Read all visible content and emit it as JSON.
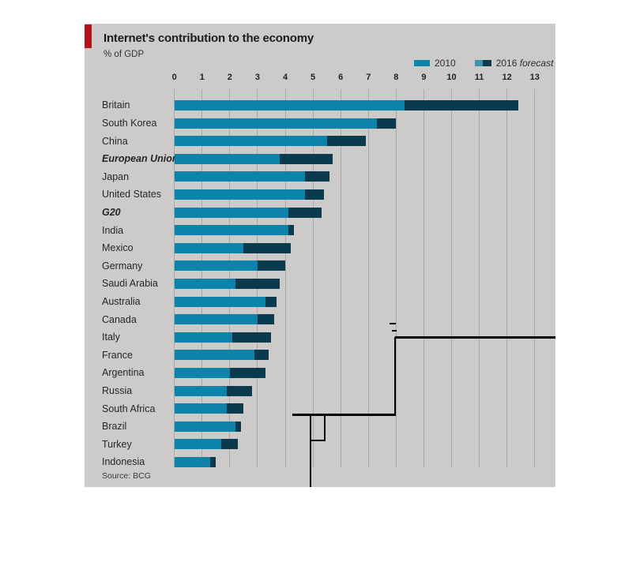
{
  "title": "Internet's contribution to the economy",
  "subtitle": "% of GDP",
  "source": "Source: BCG",
  "legend": {
    "y2010_label": "2010",
    "y2016_label": "2016",
    "y2016_italic": "forecast"
  },
  "chart_data": {
    "type": "bar",
    "orientation": "horizontal-stacked",
    "title": "Internet's contribution to the economy",
    "xlabel": "% of GDP",
    "xlim": [
      0,
      13
    ],
    "x_ticks": [
      0,
      1,
      2,
      3,
      4,
      5,
      6,
      7,
      8,
      9,
      10,
      11,
      12,
      13
    ],
    "grid": "vertical",
    "legend_position": "top-right",
    "categories": [
      "Britain",
      "South Korea",
      "China",
      "European Union",
      "Japan",
      "United States",
      "G20",
      "India",
      "Mexico",
      "Germany",
      "Saudi Arabia",
      "Australia",
      "Canada",
      "Italy",
      "France",
      "Argentina",
      "Russia",
      "South Africa",
      "Brazil",
      "Turkey",
      "Indonesia"
    ],
    "italic_categories": [
      "European Union",
      "G20"
    ],
    "series": [
      {
        "name": "2010",
        "color": "#0d82aa",
        "values": [
          8.3,
          7.3,
          5.5,
          3.8,
          4.7,
          4.7,
          4.1,
          4.1,
          2.5,
          3.0,
          2.2,
          3.3,
          3.0,
          2.1,
          2.9,
          2.0,
          1.9,
          1.9,
          2.2,
          1.7,
          1.3
        ]
      },
      {
        "name": "2016 forecast",
        "color": "#0a3a4d",
        "values": [
          12.4,
          8.0,
          6.9,
          5.7,
          5.6,
          5.4,
          5.3,
          4.3,
          4.2,
          4.0,
          3.8,
          3.7,
          3.6,
          3.5,
          3.4,
          3.3,
          2.8,
          2.5,
          2.4,
          2.3,
          1.5
        ]
      }
    ]
  },
  "colors": {
    "accent_red": "#b5121b",
    "bar_2010": "#0d82aa",
    "bar_2016": "#0a3a4d",
    "panel_bg": "#cdcbc9",
    "gridline": "#a9a7a5",
    "annotation_line": "#000000"
  }
}
